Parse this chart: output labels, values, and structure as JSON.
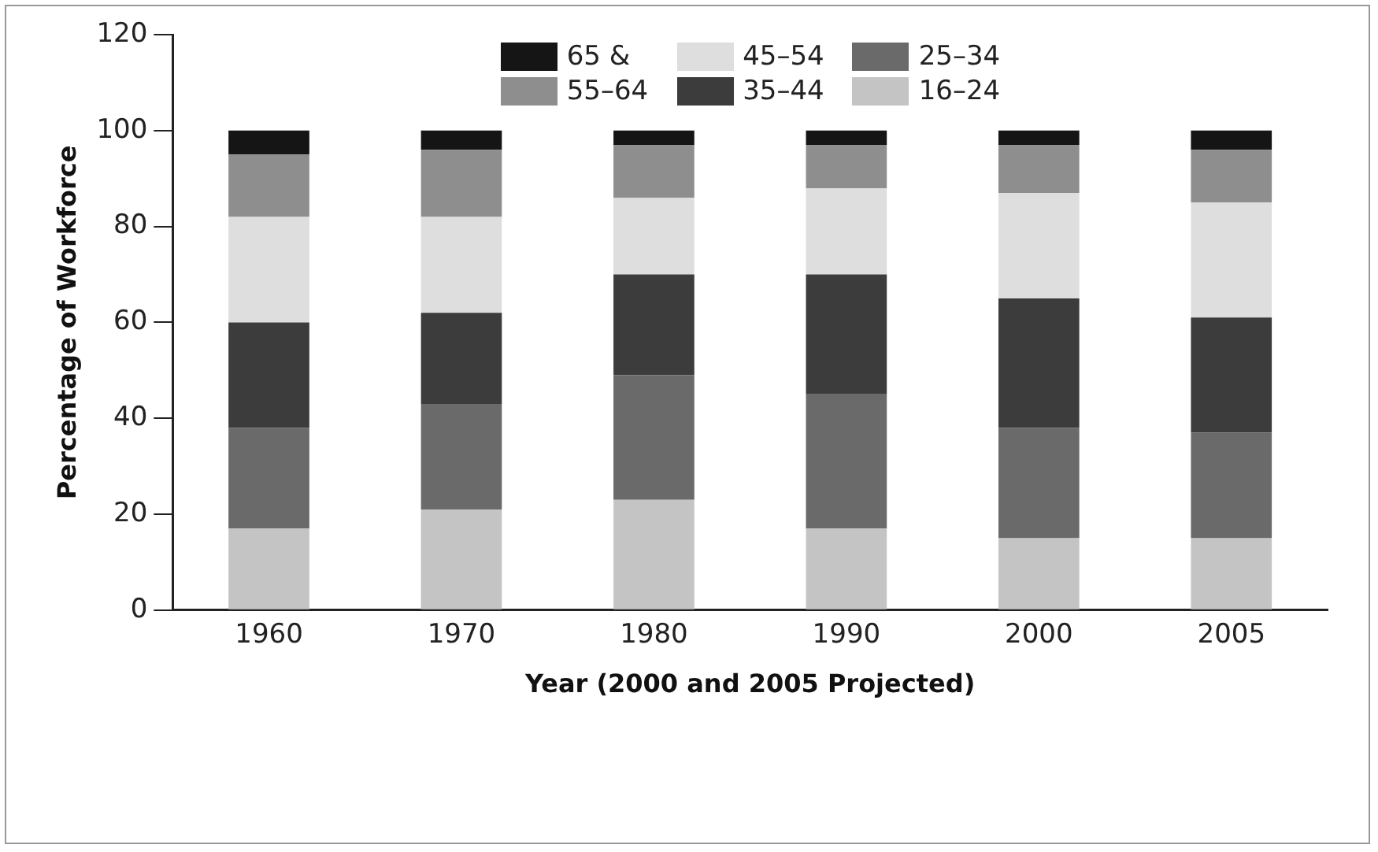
{
  "chart_data": {
    "type": "bar",
    "stacked": true,
    "xlabel": "Year (2000 and 2005 Projected)",
    "ylabel": "Percentage of Workforce",
    "categories": [
      "1960",
      "1970",
      "1980",
      "1990",
      "2000",
      "2005"
    ],
    "series": [
      {
        "name": "16–24",
        "color": "#c4c4c4",
        "values": [
          17,
          21,
          23,
          17,
          15,
          15
        ]
      },
      {
        "name": "25–34",
        "color": "#6a6a6a",
        "values": [
          21,
          22,
          26,
          28,
          23,
          22
        ]
      },
      {
        "name": "35–44",
        "color": "#3c3c3c",
        "values": [
          22,
          19,
          21,
          25,
          27,
          24
        ]
      },
      {
        "name": "45–54",
        "color": "#dedede",
        "values": [
          22,
          20,
          16,
          18,
          22,
          24
        ]
      },
      {
        "name": "55–64",
        "color": "#8e8e8e",
        "values": [
          13,
          14,
          11,
          9,
          10,
          11
        ]
      },
      {
        "name": "65 &",
        "color": "#151515",
        "values": [
          5,
          4,
          3,
          3,
          3,
          4
        ]
      }
    ],
    "ylim": [
      0,
      120
    ],
    "yticks": [
      0,
      20,
      40,
      60,
      80,
      100,
      120
    ],
    "grid": false,
    "legend": "top"
  }
}
